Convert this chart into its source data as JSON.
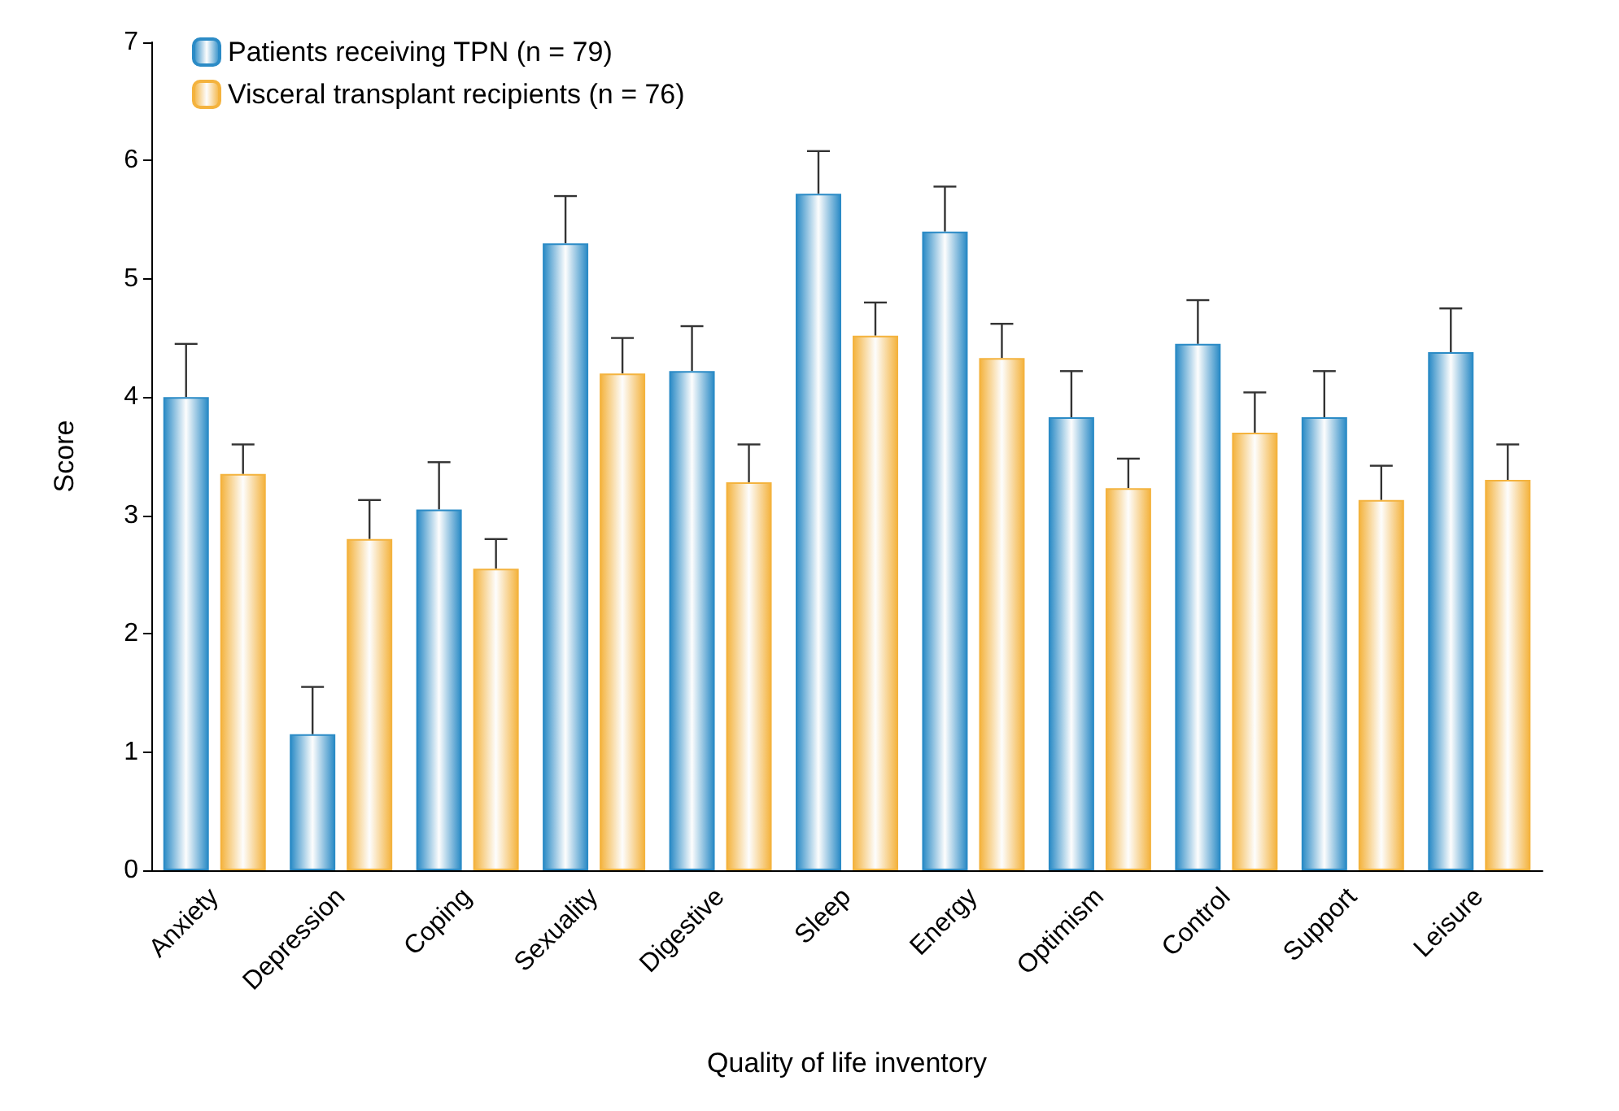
{
  "chart_data": {
    "type": "bar",
    "xlabel": "Quality of life inventory",
    "ylabel": "Score",
    "categories": [
      "Anxiety",
      "Depression",
      "Coping",
      "Sexuality",
      "Digestive",
      "Sleep",
      "Energy",
      "Optimism",
      "Control",
      "Support",
      "Leisure"
    ],
    "series": [
      {
        "name": "Patients receiving TPN (n = 79)",
        "color": "#2b8bc6",
        "values": [
          4.0,
          1.15,
          3.05,
          5.3,
          4.22,
          5.72,
          5.4,
          3.83,
          4.45,
          3.83,
          4.38
        ],
        "errors": [
          [
            4.0,
            4.45
          ],
          [
            1.15,
            1.55
          ],
          [
            3.05,
            3.45
          ],
          [
            5.3,
            5.7
          ],
          [
            4.22,
            4.6
          ],
          [
            5.72,
            6.08
          ],
          [
            5.4,
            5.78
          ],
          [
            3.83,
            4.22
          ],
          [
            4.45,
            4.82
          ],
          [
            3.83,
            4.22
          ],
          [
            4.38,
            4.75
          ]
        ]
      },
      {
        "name": "Visceral transplant recipients (n = 76)",
        "color": "#f4b33e",
        "values": [
          3.35,
          2.8,
          2.55,
          4.2,
          3.28,
          4.52,
          4.33,
          3.23,
          3.7,
          3.13,
          3.3
        ],
        "errors": [
          [
            3.35,
            3.6
          ],
          [
            2.8,
            3.13
          ],
          [
            2.55,
            2.8
          ],
          [
            4.2,
            4.5
          ],
          [
            3.28,
            3.6
          ],
          [
            4.52,
            4.8
          ],
          [
            4.33,
            4.62
          ],
          [
            3.23,
            3.48
          ],
          [
            3.7,
            4.04
          ],
          [
            3.13,
            3.42
          ],
          [
            3.3,
            3.6
          ]
        ]
      }
    ],
    "ylim": [
      0,
      7
    ],
    "yticks": [
      0,
      1,
      2,
      3,
      4,
      5,
      6,
      7
    ],
    "grid": false,
    "legend": "top left"
  }
}
